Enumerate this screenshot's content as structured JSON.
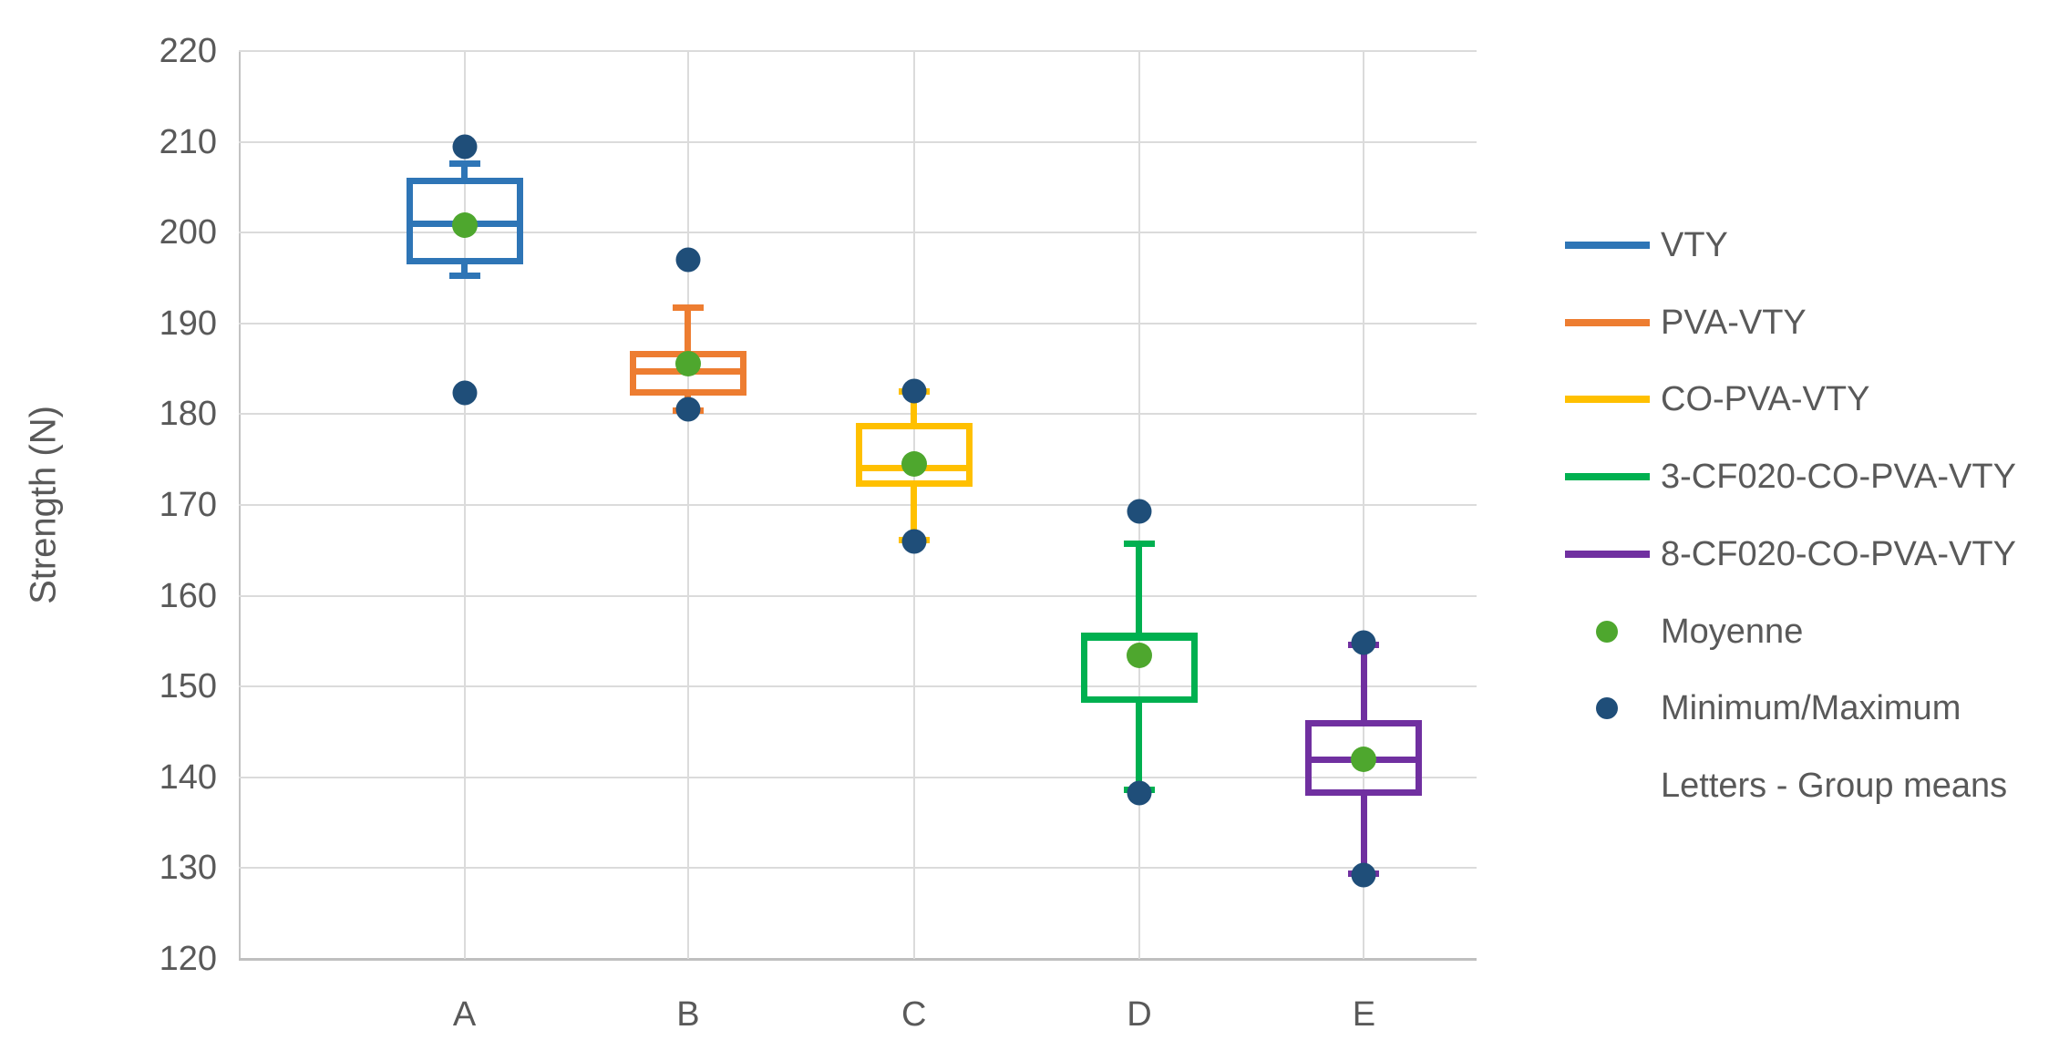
{
  "chart_data": {
    "type": "boxplot",
    "title": "",
    "xlabel": "",
    "ylabel": "Strength (N)",
    "ylim": [
      120,
      220
    ],
    "yticks": [
      220,
      210,
      200,
      190,
      180,
      170,
      160,
      150,
      140,
      130,
      120
    ],
    "grid": "both",
    "categories": [
      "A",
      "B",
      "C",
      "D",
      "E"
    ],
    "series": [
      {
        "name": "VTY",
        "letter": "A",
        "color": "#2E75B6",
        "min": 182.3,
        "whisker_low": 195.3,
        "q1": 196.5,
        "median": 201.0,
        "mean": 200.8,
        "q3": 206.0,
        "whisker_high": 207.6,
        "max": 209.5
      },
      {
        "name": "PVA-VTY",
        "letter": "B",
        "color": "#ED7D31",
        "min": 180.5,
        "whisker_low": 180.4,
        "q1": 182.0,
        "median": 184.7,
        "mean": 185.6,
        "q3": 187.0,
        "whisker_high": 191.7,
        "max": 197.0
      },
      {
        "name": "CO-PVA-VTY",
        "letter": "C",
        "color": "#FFC000",
        "min": 166.0,
        "whisker_low": 166.1,
        "q1": 172.0,
        "median": 174.1,
        "mean": 174.5,
        "q3": 179.0,
        "whisker_high": 182.5,
        "max": 182.6
      },
      {
        "name": "3-CF020-CO-PVA-VTY",
        "letter": "D",
        "color": "#00B050",
        "min": 138.3,
        "whisker_low": 138.6,
        "q1": 148.2,
        "median": 155.4,
        "mean": 153.4,
        "q3": 155.9,
        "whisker_high": 165.7,
        "max": 169.3
      },
      {
        "name": "8-CF020-CO-PVA-VTY",
        "letter": "E",
        "color": "#7030A0",
        "min": 129.2,
        "whisker_low": 129.4,
        "q1": 138.0,
        "median": 141.9,
        "mean": 142.0,
        "q3": 146.3,
        "whisker_high": 154.6,
        "max": 154.8
      }
    ],
    "marker_colors": {
      "mean": "#4EA72E",
      "minmax": "#1F4E79"
    },
    "legend_position": "right",
    "legend": [
      {
        "label": "VTY",
        "marker": "line",
        "color": "#2E75B6"
      },
      {
        "label": "PVA-VTY",
        "marker": "line",
        "color": "#ED7D31"
      },
      {
        "label": "CO-PVA-VTY",
        "marker": "line",
        "color": "#FFC000"
      },
      {
        "label": "3-CF020-CO-PVA-VTY",
        "marker": "line",
        "color": "#00B050"
      },
      {
        "label": "8-CF020-CO-PVA-VTY",
        "marker": "line",
        "color": "#7030A0"
      },
      {
        "label": "Moyenne",
        "marker": "dot",
        "color": "#4EA72E"
      },
      {
        "label": "Minimum/Maximum",
        "marker": "dot",
        "color": "#1F4E79"
      },
      {
        "label": "Letters - Group means",
        "marker": "none",
        "color": ""
      }
    ]
  }
}
